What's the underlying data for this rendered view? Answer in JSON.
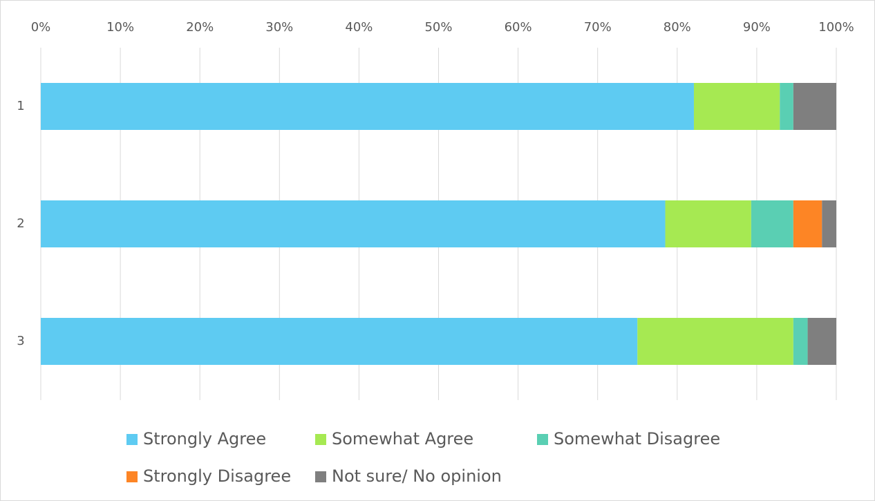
{
  "chart_data": {
    "type": "stacked-bar-horizontal",
    "categories": [
      "1",
      "2",
      "3"
    ],
    "series": [
      {
        "name": "Strongly Agree",
        "color": "#5ecbf2",
        "values": [
          82.1,
          78.5,
          75.0
        ]
      },
      {
        "name": "Somewhat Agree",
        "color": "#a6e952",
        "values": [
          10.8,
          10.8,
          19.6
        ]
      },
      {
        "name": "Somewhat Disagree",
        "color": "#5acfb3",
        "values": [
          1.7,
          5.3,
          1.8
        ]
      },
      {
        "name": "Strongly Disagree",
        "color": "#fd8525",
        "values": [
          0,
          3.6,
          0
        ]
      },
      {
        "name": "Not sure/ No opinion",
        "color": "#7f7f7f",
        "values": [
          5.4,
          1.8,
          3.6
        ]
      }
    ],
    "xlim": [
      0,
      100
    ],
    "xticks": [
      {
        "value": 0,
        "label": "0%"
      },
      {
        "value": 10,
        "label": "10%"
      },
      {
        "value": 20,
        "label": "20%"
      },
      {
        "value": 30,
        "label": "30%"
      },
      {
        "value": 40,
        "label": "40%"
      },
      {
        "value": 50,
        "label": "50%"
      },
      {
        "value": 60,
        "label": "60%"
      },
      {
        "value": 70,
        "label": "70%"
      },
      {
        "value": 80,
        "label": "80%"
      },
      {
        "value": 90,
        "label": "90%"
      },
      {
        "value": 100,
        "label": "100%"
      }
    ],
    "grid": true,
    "legend": "bottom"
  }
}
